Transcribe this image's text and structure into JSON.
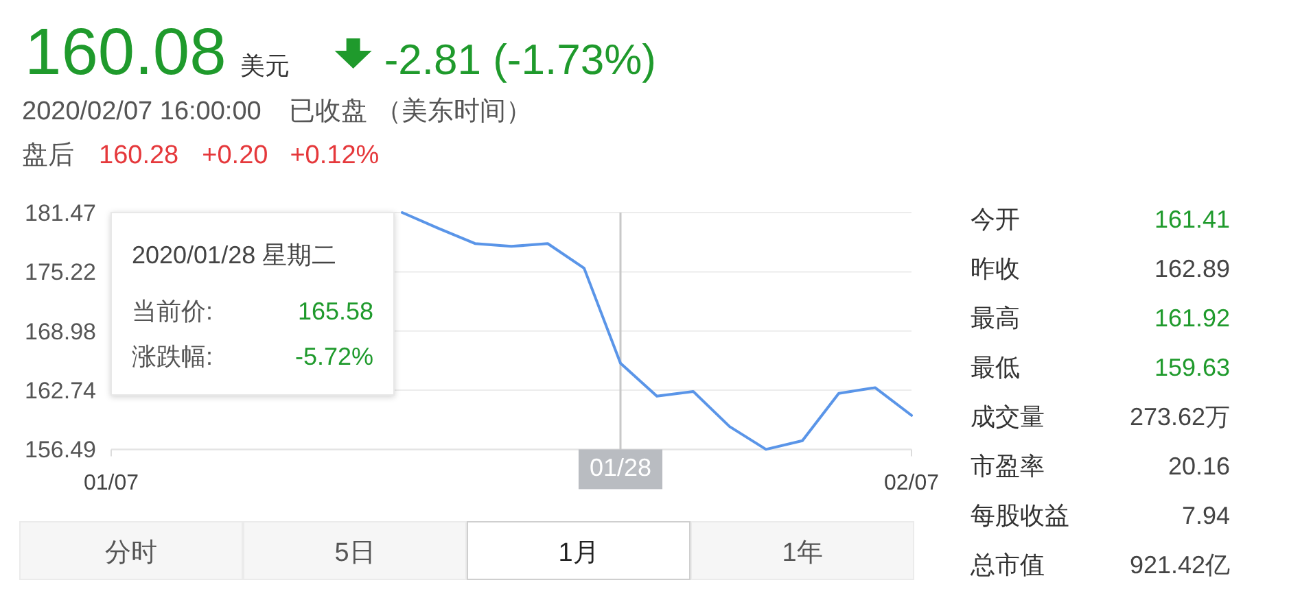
{
  "chart_data": [
    {
      "type": "other",
      "annotations": [
        "160.08",
        "美元",
        "-2.81 (-1.73%)",
        "2020/02/07 16:00:00",
        "已收盘",
        "（美东时间）",
        "盘后",
        "160.28",
        "+0.20",
        "+0.12%"
      ]
    },
    {
      "type": "line",
      "categories": [
        "01/07",
        null,
        null,
        null,
        null,
        null,
        null,
        null,
        null,
        null,
        null,
        null,
        null,
        null,
        "01/28",
        null,
        null,
        null,
        null,
        null,
        null,
        null,
        "02/07"
      ],
      "series": [
        {
          "color": "#5a95e8",
          "values": [
            null,
            null,
            null,
            null,
            null,
            null,
            null,
            null,
            181.47,
            179.8,
            178.2,
            177.9,
            178.2,
            175.6,
            165.58,
            162.1,
            162.6,
            158.9,
            156.49,
            157.4,
            162.4,
            163.0,
            160.08
          ]
        }
      ],
      "ylim": [
        156.49,
        181.47
      ],
      "yticks": [
        156.49,
        162.74,
        168.98,
        175.22,
        181.47
      ],
      "grid": "y",
      "ref_lines": [
        {
          "axis": "x",
          "value": "01/28",
          "color": "#c8c8c8"
        }
      ],
      "annotations": [
        "2020/01/28 星期二",
        "当前价:",
        "165.58",
        "涨跌幅:",
        "-5.72%"
      ]
    },
    {
      "type": "other",
      "annotations": [
        "今开",
        "161.41",
        "昨收",
        "162.89",
        "最高",
        "161.92",
        "最低",
        "159.63",
        "成交量",
        "273.62万",
        "市盈率",
        "20.16",
        "每股收益",
        "7.94",
        "总市值",
        "921.42亿"
      ]
    },
    {
      "type": "other",
      "annotations": [
        "分时",
        "5日",
        "1月",
        "1年"
      ]
    }
  ]
}
